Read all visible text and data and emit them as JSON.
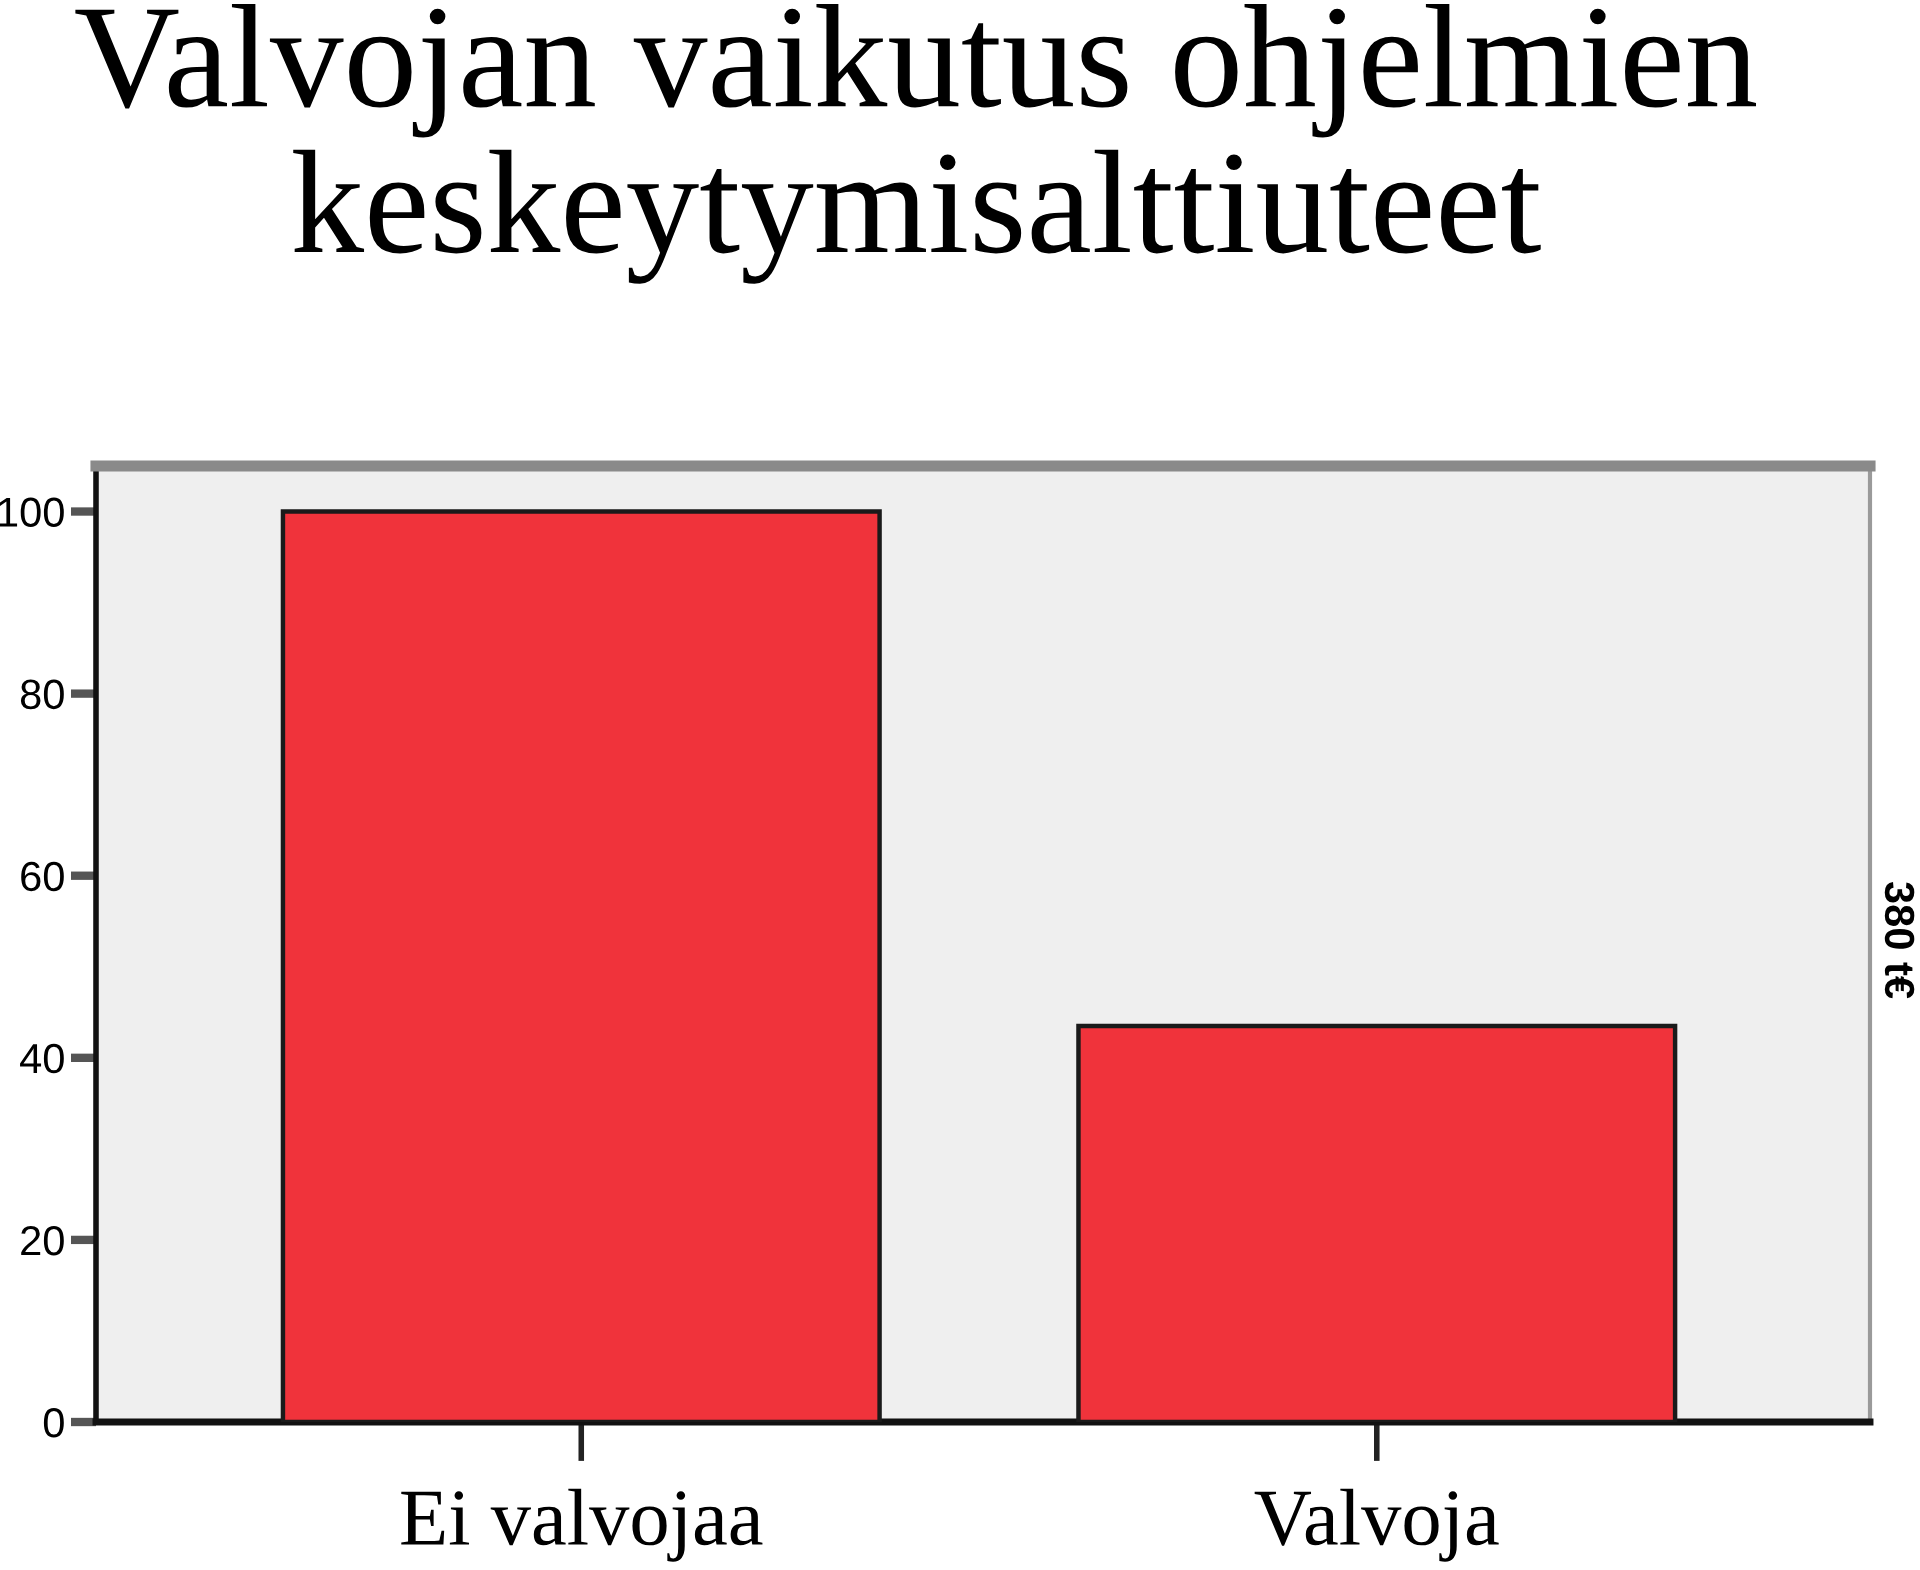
{
  "chart_data": {
    "type": "bar",
    "title": "Valvojan vaikutus ohjelmien keskeytymisalttiuteet",
    "categories": [
      "Ei valvojaa",
      "Valvoja"
    ],
    "values": [
      100,
      43.5
    ],
    "color": "#f0333b",
    "ylim": [
      0,
      105
    ],
    "yticks": [
      0,
      20,
      40,
      60,
      80,
      100
    ],
    "grid": false,
    "legend": false,
    "annotations": [
      "380 t€"
    ]
  }
}
